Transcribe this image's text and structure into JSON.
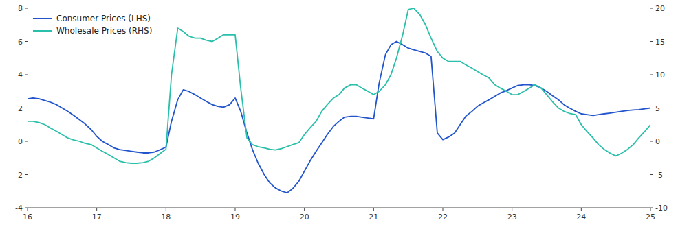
{
  "chart_data": {
    "type": "line",
    "x": [
      16.0,
      16.08,
      16.17,
      16.25,
      16.33,
      16.42,
      16.5,
      16.58,
      16.67,
      16.75,
      16.83,
      16.92,
      17.0,
      17.08,
      17.17,
      17.25,
      17.33,
      17.42,
      17.5,
      17.58,
      17.67,
      17.75,
      17.83,
      17.92,
      18.0,
      18.08,
      18.17,
      18.25,
      18.33,
      18.42,
      18.5,
      18.58,
      18.67,
      18.75,
      18.83,
      18.92,
      19.0,
      19.08,
      19.17,
      19.25,
      19.33,
      19.42,
      19.5,
      19.58,
      19.67,
      19.75,
      19.83,
      19.92,
      20.0,
      20.08,
      20.17,
      20.25,
      20.33,
      20.42,
      20.5,
      20.58,
      20.67,
      20.75,
      20.83,
      20.92,
      21.0,
      21.08,
      21.17,
      21.25,
      21.33,
      21.42,
      21.5,
      21.58,
      21.67,
      21.75,
      21.83,
      21.92,
      22.0,
      22.08,
      22.17,
      22.25,
      22.33,
      22.42,
      22.5,
      22.58,
      22.67,
      22.75,
      22.83,
      22.92,
      23.0,
      23.08,
      23.17,
      23.25,
      23.33,
      23.42,
      23.5,
      23.58,
      23.67,
      23.75,
      23.83,
      23.92,
      24.0,
      24.08,
      24.17,
      24.25,
      24.33,
      24.42,
      24.5,
      24.58,
      24.67,
      24.75,
      24.83,
      24.92,
      25.0
    ],
    "series": [
      {
        "name": "Consumer Prices (LHS)",
        "color": "#2255cc",
        "values": [
          2.55,
          2.6,
          2.55,
          2.45,
          2.35,
          2.2,
          2.0,
          1.8,
          1.55,
          1.3,
          1.05,
          0.7,
          0.3,
          0.0,
          -0.2,
          -0.4,
          -0.5,
          -0.55,
          -0.6,
          -0.65,
          -0.7,
          -0.7,
          -0.65,
          -0.5,
          -0.35,
          1.2,
          2.5,
          3.1,
          3.0,
          2.8,
          2.6,
          2.4,
          2.2,
          2.1,
          2.05,
          2.2,
          2.6,
          1.8,
          0.5,
          -0.5,
          -1.3,
          -2.0,
          -2.5,
          -2.8,
          -3.0,
          -3.1,
          -2.85,
          -2.4,
          -1.8,
          -1.2,
          -0.6,
          -0.1,
          0.4,
          0.9,
          1.2,
          1.45,
          1.5,
          1.5,
          1.45,
          1.4,
          1.35,
          3.5,
          5.2,
          5.8,
          6.0,
          5.8,
          5.6,
          5.5,
          5.4,
          5.3,
          5.1,
          0.5,
          0.1,
          0.25,
          0.5,
          1.0,
          1.5,
          1.8,
          2.1,
          2.3,
          2.5,
          2.7,
          2.9,
          3.05,
          3.2,
          3.35,
          3.4,
          3.4,
          3.35,
          3.2,
          3.0,
          2.75,
          2.5,
          2.2,
          2.0,
          1.8,
          1.65,
          1.6,
          1.55,
          1.6,
          1.65,
          1.7,
          1.75,
          1.8,
          1.85,
          1.88,
          1.9,
          1.95,
          2.0
        ]
      },
      {
        "name": "Wholesale Prices (RHS)",
        "color": "#2abfaa",
        "axis": "y2",
        "values": [
          3.0,
          3.0,
          2.8,
          2.5,
          2.0,
          1.5,
          1.0,
          0.5,
          0.2,
          0.0,
          -0.3,
          -0.5,
          -1.0,
          -1.5,
          -2.0,
          -2.5,
          -3.0,
          -3.2,
          -3.3,
          -3.3,
          -3.2,
          -3.0,
          -2.5,
          -1.8,
          -1.2,
          10.0,
          17.0,
          16.5,
          15.8,
          15.5,
          15.5,
          15.2,
          15.0,
          15.5,
          16.0,
          16.0,
          16.0,
          8.0,
          0.5,
          -0.5,
          -0.8,
          -1.0,
          -1.2,
          -1.3,
          -1.1,
          -0.8,
          -0.5,
          -0.2,
          1.0,
          2.0,
          3.0,
          4.5,
          5.5,
          6.5,
          7.0,
          8.0,
          8.5,
          8.5,
          8.0,
          7.5,
          7.0,
          7.5,
          8.5,
          10.0,
          12.5,
          16.0,
          19.8,
          20.0,
          19.0,
          17.5,
          15.5,
          13.5,
          12.5,
          12.0,
          12.0,
          12.0,
          11.5,
          11.0,
          10.5,
          10.0,
          9.5,
          8.5,
          8.0,
          7.5,
          7.0,
          7.0,
          7.5,
          8.0,
          8.5,
          8.0,
          7.0,
          6.0,
          5.0,
          4.5,
          4.2,
          4.0,
          2.5,
          1.5,
          0.5,
          -0.5,
          -1.2,
          -1.8,
          -2.2,
          -1.8,
          -1.2,
          -0.5,
          0.5,
          1.5,
          2.5
        ]
      }
    ],
    "xlim": [
      16,
      25
    ],
    "xticks": [
      16,
      17,
      18,
      19,
      20,
      21,
      22,
      23,
      24,
      25
    ],
    "ylim": [
      -4,
      8
    ],
    "yticks": [
      -4,
      -2,
      0,
      2,
      4,
      6,
      8
    ],
    "y2lim": [
      -10,
      20
    ],
    "y2ticks": [
      -10,
      -5,
      0,
      5,
      10,
      15,
      20
    ],
    "legend": "upper left",
    "grid": false
  }
}
